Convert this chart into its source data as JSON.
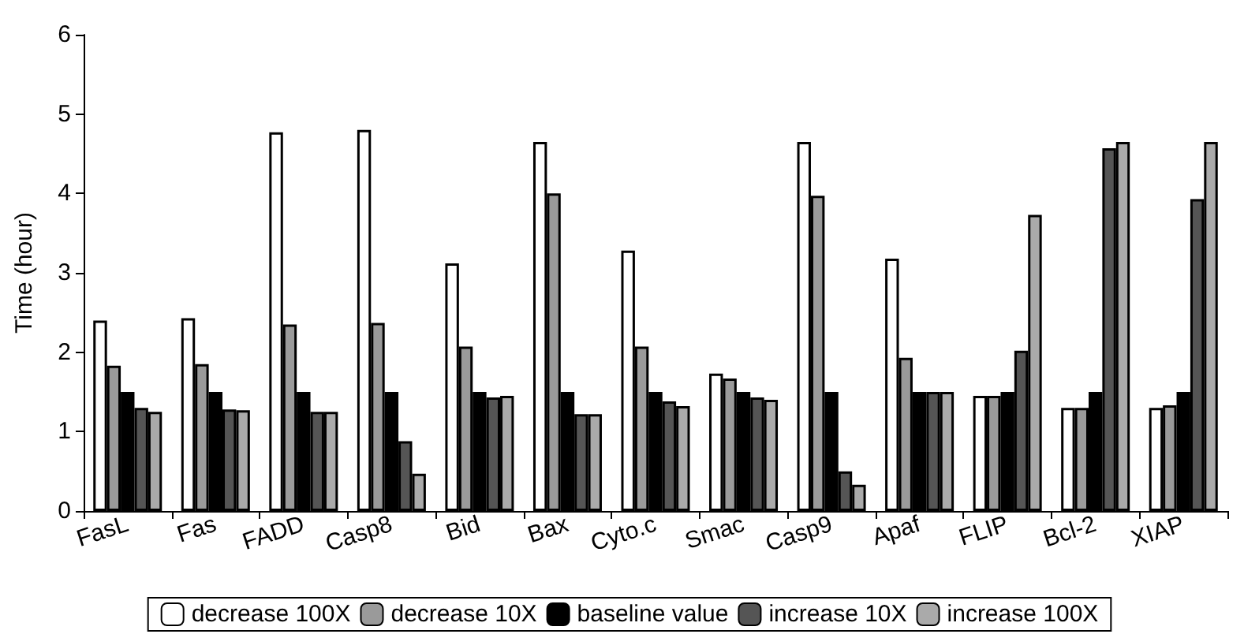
{
  "chart_data": {
    "type": "bar",
    "ylabel": "Time (hour)",
    "categories": [
      "FasL",
      "Fas",
      "FADD",
      "Casp8",
      "Bid",
      "Bax",
      "Cyto.c",
      "Smac",
      "Casp9",
      "Apaf",
      "FLIP",
      "Bcl-2",
      "XIAP"
    ],
    "series": [
      {
        "name": "decrease 100X",
        "color": "#ffffff",
        "values": [
          2.4,
          2.43,
          4.77,
          4.8,
          3.12,
          4.65,
          3.28,
          1.73,
          4.65,
          3.18,
          1.45,
          1.3,
          1.3
        ]
      },
      {
        "name": "decrease 10X",
        "color": "#9a9a9a",
        "values": [
          1.83,
          1.85,
          2.35,
          2.37,
          2.07,
          4.0,
          2.07,
          1.67,
          3.97,
          1.93,
          1.45,
          1.3,
          1.33
        ]
      },
      {
        "name": "baseline value",
        "color": "#000000",
        "values": [
          1.5,
          1.5,
          1.5,
          1.5,
          1.5,
          1.5,
          1.5,
          1.5,
          1.5,
          1.5,
          1.5,
          1.5,
          1.5
        ]
      },
      {
        "name": "increase 10X",
        "color": "#555555",
        "values": [
          1.3,
          1.28,
          1.25,
          0.88,
          1.43,
          1.22,
          1.38,
          1.43,
          0.5,
          1.5,
          2.02,
          4.57,
          3.93
        ]
      },
      {
        "name": "increase 100X",
        "color": "#aaaaaa",
        "values": [
          1.25,
          1.27,
          1.25,
          0.47,
          1.45,
          1.22,
          1.32,
          1.4,
          0.33,
          1.5,
          3.73,
          4.65,
          4.65
        ]
      }
    ],
    "ylim": [
      0,
      6
    ],
    "yticks": [
      0,
      1,
      2,
      3,
      4,
      5,
      6
    ],
    "grid": false,
    "legend": "bottom"
  }
}
